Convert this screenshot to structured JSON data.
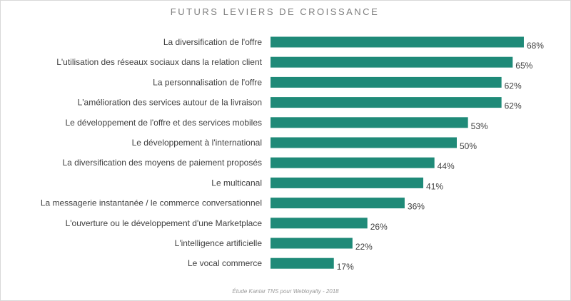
{
  "chart_data": {
    "type": "bar",
    "orientation": "horizontal",
    "title": "FUTURS LEVIERS  DE CROISSANCE",
    "categories": [
      "La diversification de l'offre",
      "L'utilisation des réseaux sociaux dans la relation client",
      "La personnalisation de l'offre",
      "L'amélioration des services autour de la livraison",
      "Le développement  de l'offre et des services mobiles",
      "Le développement à l'international",
      "La diversification des moyens de paiement proposés",
      "Le multicanal",
      "La messagerie instantanée / le commerce conversationnel",
      "L'ouverture ou le développement d'une Marketplace",
      "L'intelligence artificielle",
      "Le vocal commerce"
    ],
    "values": [
      68,
      65,
      62,
      62,
      53,
      50,
      44,
      41,
      36,
      26,
      22,
      17
    ],
    "value_labels": [
      "68%",
      "65%",
      "62%",
      "62%",
      "53%",
      "50%",
      "44%",
      "41%",
      "36%",
      "26%",
      "22%",
      "17%"
    ],
    "xlim": [
      0,
      70
    ],
    "grid": false,
    "legend": "none",
    "bar_color": "#1f8a78",
    "source": "Étude Kantar TNS pour Webloyalty - 2018"
  }
}
